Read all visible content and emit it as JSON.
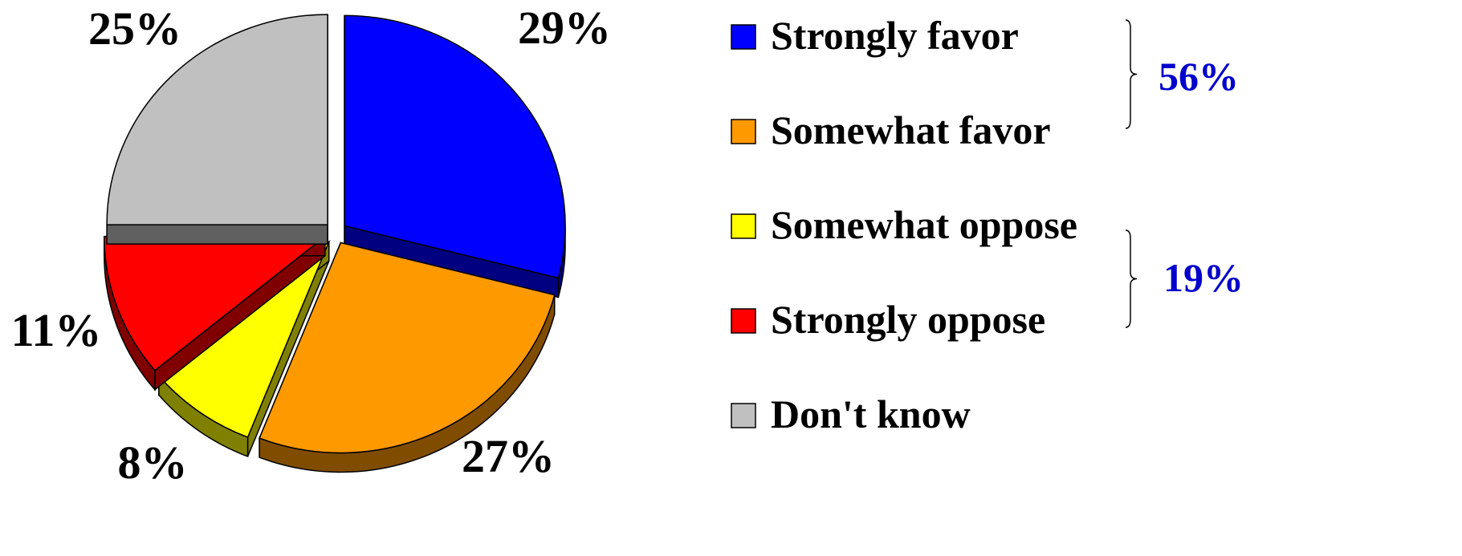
{
  "chart_data": {
    "type": "pie",
    "title": "",
    "series": [
      {
        "name": "Strongly favor",
        "value": 29,
        "label": "29%",
        "color": "#0000FF",
        "side_color": "#000080"
      },
      {
        "name": "Somewhat favor",
        "value": 27,
        "label": "27%",
        "color": "#FF9900",
        "side_color": "#804D00"
      },
      {
        "name": "Somewhat oppose",
        "value": 8,
        "label": "8%",
        "color": "#FFFF00",
        "side_color": "#808000"
      },
      {
        "name": "Strongly oppose",
        "value": 11,
        "label": "11%",
        "color": "#FF0000",
        "side_color": "#800000"
      },
      {
        "name": "Don't know",
        "value": 25,
        "label": "25%",
        "color": "#C0C0C0",
        "side_color": "#606060"
      }
    ],
    "legend_position": "right",
    "exploded": true,
    "three_d": true,
    "groups": [
      {
        "label": "56%",
        "members": [
          "Strongly favor",
          "Somewhat favor"
        ],
        "color": "#0000CC"
      },
      {
        "label": "19%",
        "members": [
          "Somewhat oppose",
          "Strongly oppose"
        ],
        "color": "#0000CC"
      }
    ]
  }
}
